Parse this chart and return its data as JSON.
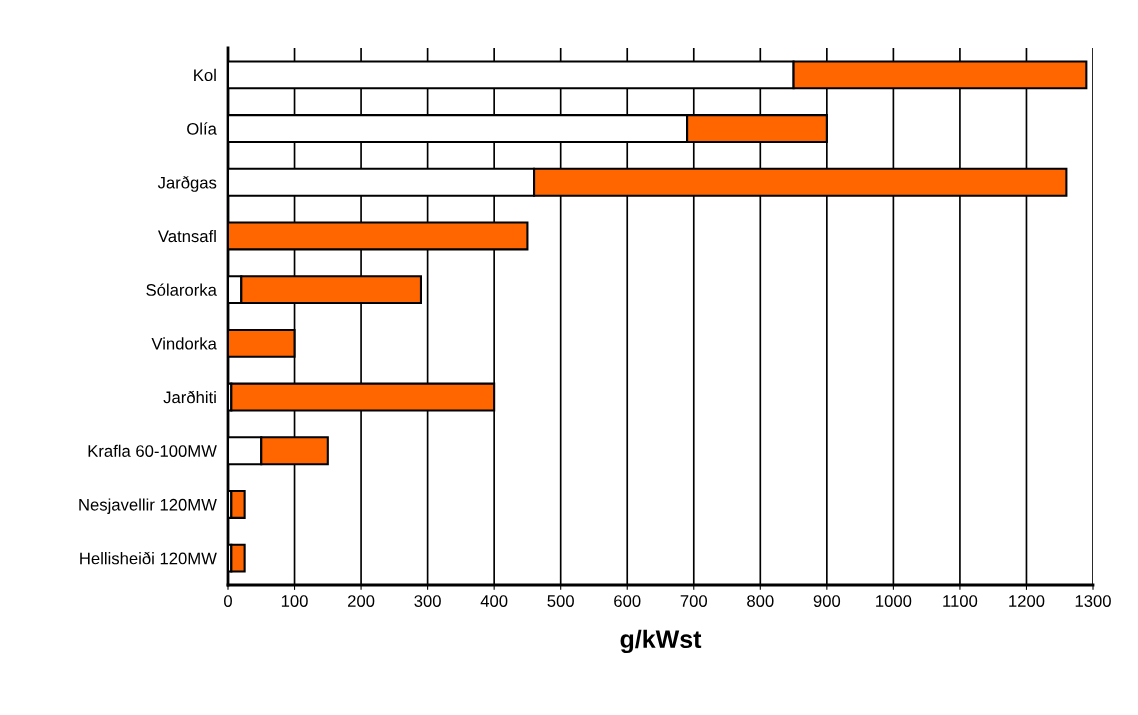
{
  "chart_data": {
    "type": "bar",
    "orientation": "horizontal",
    "stacked": true,
    "categories": [
      "Kol",
      "Olía",
      "Jarðgas",
      "Vatnsafl",
      "Sólarorka",
      "Vindorka",
      "Jarðhiti",
      "Krafla 60-100MW",
      "Nesjavellir 120MW",
      "Hellisheiði 120MW"
    ],
    "series": [
      {
        "color": "#ffffff",
        "values": [
          850,
          690,
          460,
          0,
          20,
          0,
          5,
          50,
          5,
          5
        ]
      },
      {
        "color": "#ff6600",
        "values": [
          440,
          210,
          800,
          450,
          270,
          100,
          395,
          100,
          20,
          20
        ]
      }
    ],
    "xlabel": "g/kWst",
    "xlim": [
      0,
      1300
    ],
    "xticks": [
      0,
      100,
      200,
      300,
      400,
      500,
      600,
      700,
      800,
      900,
      1000,
      1100,
      1200,
      1300
    ],
    "grid": "x"
  }
}
